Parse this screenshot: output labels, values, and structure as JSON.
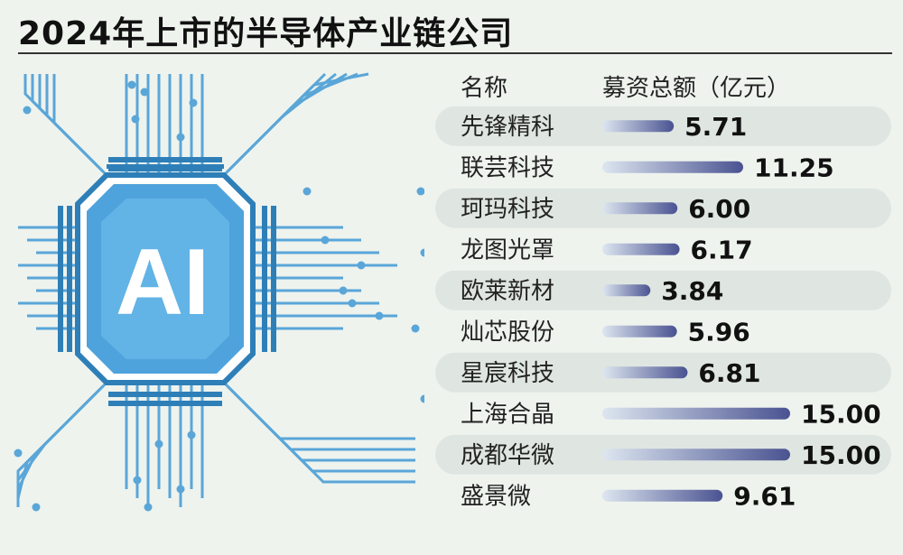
{
  "title": "2024年上市的半导体产业链公司",
  "illustration": {
    "chip_text": "AI",
    "icon": "ai-chip-circuit-icon"
  },
  "table_header": {
    "name_label": "名称",
    "value_label": "募资总额（亿元）"
  },
  "colors": {
    "bar_start": "#dde6f0",
    "bar_end": "#4a5391",
    "row_band": "#dfe6e1",
    "circuit": "#5aa6d8",
    "chip_fill": "#4fa3dc",
    "chip_dark": "#2e7fb8"
  },
  "chart_data": {
    "type": "bar",
    "orientation": "horizontal",
    "title": "2024年上市的半导体产业链公司",
    "xlabel": "募资总额（亿元）",
    "ylabel": "名称",
    "categories": [
      "先锋精科",
      "联芸科技",
      "珂玛科技",
      "龙图光罩",
      "欧莱新材",
      "灿芯股份",
      "星宸科技",
      "上海合晶",
      "成都华微",
      "盛景微"
    ],
    "values": [
      5.71,
      11.25,
      6.0,
      6.17,
      3.84,
      5.96,
      6.81,
      15.0,
      15.0,
      9.61
    ],
    "value_labels": [
      "5.71",
      "11.25",
      "6.00",
      "6.17",
      "3.84",
      "5.96",
      "6.81",
      "15.00",
      "15.00",
      "9.61"
    ],
    "xlim": [
      0,
      15
    ],
    "grid": false,
    "legend": "none"
  }
}
